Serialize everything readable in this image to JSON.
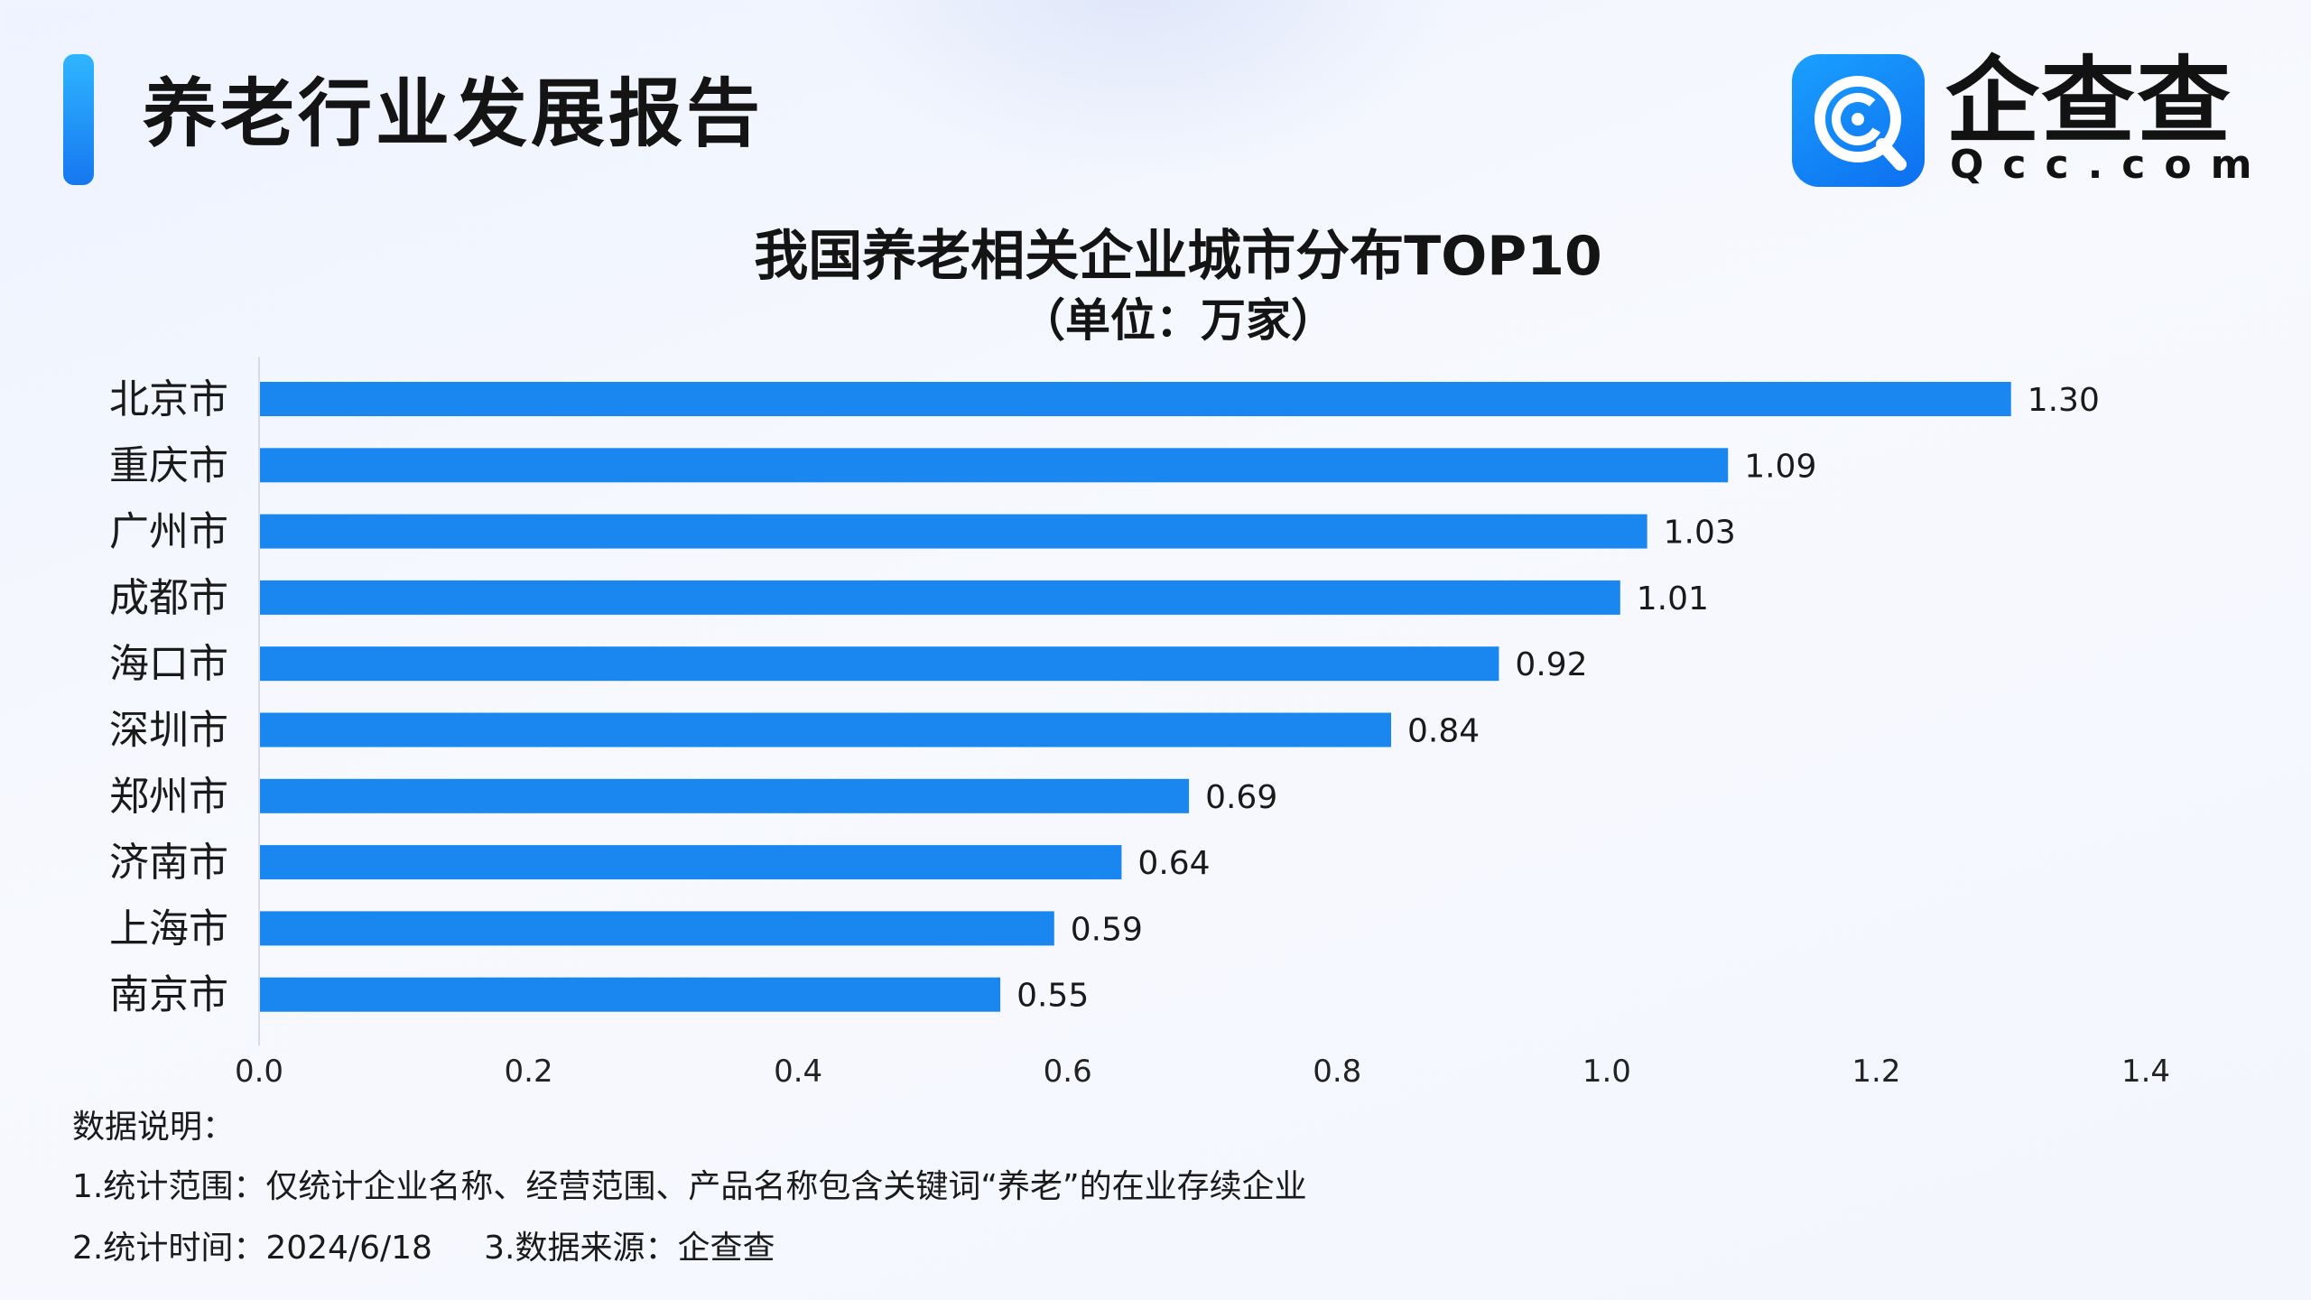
{
  "header": {
    "title": "养老行业发展报告",
    "logo_name": "企查查",
    "logo_domain": "Qcc.com",
    "accent_color": "#1a86f0"
  },
  "chart_data": {
    "type": "bar",
    "orientation": "horizontal",
    "title": "我国养老相关企业城市分布TOP10",
    "subtitle": "（单位：万家）",
    "categories": [
      "北京市",
      "重庆市",
      "广州市",
      "成都市",
      "海口市",
      "深圳市",
      "郑州市",
      "济南市",
      "上海市",
      "南京市"
    ],
    "values": [
      1.3,
      1.09,
      1.03,
      1.01,
      0.92,
      0.84,
      0.69,
      0.64,
      0.59,
      0.55
    ],
    "value_labels": [
      "1.30",
      "1.09",
      "1.03",
      "1.01",
      "0.92",
      "0.84",
      "0.69",
      "0.64",
      "0.59",
      "0.55"
    ],
    "xlim": [
      0,
      1.4
    ],
    "x_ticks": [
      0.0,
      0.2,
      0.4,
      0.6,
      0.8,
      1.0,
      1.2,
      1.4
    ],
    "x_tick_labels": [
      "0.0",
      "0.2",
      "0.4",
      "0.6",
      "0.8",
      "1.0",
      "1.2",
      "1.4"
    ],
    "xlabel": "",
    "ylabel": "",
    "grid": false,
    "bar_color": "#1a86f0"
  },
  "notes": {
    "heading": "数据说明：",
    "line1": "1.统计范围：仅统计企业名称、经营范围、产品名称包含关键词“养老”的在业存续企业",
    "line2": "2.统计时间：2024/6/18     3.数据来源：企查查"
  }
}
